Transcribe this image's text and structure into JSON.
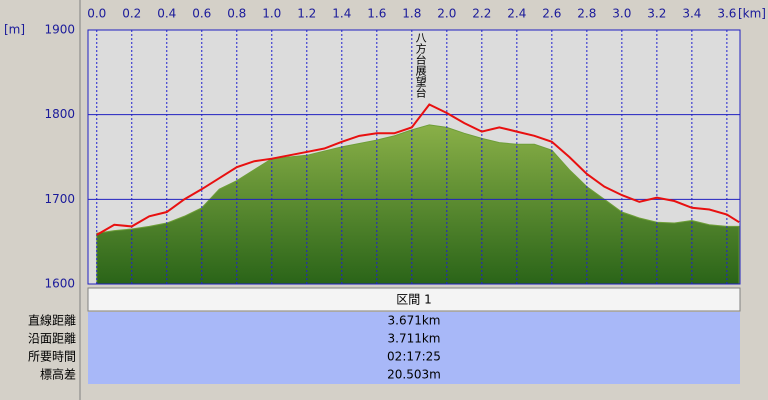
{
  "chart_data": {
    "type": "line",
    "xunit": "[km]",
    "yunit": "[m]",
    "x": [
      0,
      0.1,
      0.2,
      0.3,
      0.4,
      0.5,
      0.6,
      0.7,
      0.8,
      0.9,
      1.0,
      1.1,
      1.2,
      1.3,
      1.4,
      1.5,
      1.6,
      1.7,
      1.8,
      1.9,
      2.0,
      2.1,
      2.2,
      2.3,
      2.4,
      2.5,
      2.6,
      2.7,
      2.8,
      2.9,
      3.0,
      3.1,
      3.2,
      3.3,
      3.4,
      3.5,
      3.6,
      3.67
    ],
    "series": [
      {
        "style": "area",
        "color": "#6e9e38",
        "values": [
          1660,
          1663,
          1665,
          1668,
          1672,
          1680,
          1690,
          1712,
          1722,
          1735,
          1748,
          1750,
          1752,
          1757,
          1762,
          1766,
          1770,
          1775,
          1782,
          1788,
          1785,
          1778,
          1772,
          1767,
          1765,
          1765,
          1758,
          1735,
          1715,
          1700,
          1685,
          1678,
          1673,
          1672,
          1675,
          1670,
          1668,
          1668
        ]
      },
      {
        "style": "line",
        "color": "#e81010",
        "values": [
          1658,
          1670,
          1668,
          1680,
          1685,
          1700,
          1712,
          1725,
          1738,
          1745,
          1748,
          1752,
          1756,
          1760,
          1768,
          1775,
          1778,
          1778,
          1785,
          1812,
          1802,
          1790,
          1780,
          1785,
          1780,
          1775,
          1768,
          1750,
          1730,
          1715,
          1705,
          1697,
          1702,
          1698,
          1690,
          1688,
          1682,
          1673
        ]
      }
    ],
    "annotations": [
      {
        "text": "八方台展望台",
        "x": 1.85
      }
    ],
    "xlim": [
      -0.05,
      3.675
    ],
    "ylim": [
      1600,
      1900
    ],
    "xticks": [
      {
        "value": 0,
        "label": "0.0"
      },
      0.2,
      0.4,
      0.6,
      0.8,
      {
        "value": 1,
        "label": "1.0"
      },
      1.2,
      1.4,
      1.6,
      1.8,
      {
        "value": 2,
        "label": "2.0"
      },
      2.2,
      2.4,
      2.6,
      2.8,
      {
        "value": 3,
        "label": "3.0"
      },
      3.2,
      3.4,
      3.6
    ],
    "yticks": [
      1600,
      1700,
      1800,
      1900
    ],
    "grid": true
  },
  "table": {
    "header": "区間 1",
    "rows": [
      [
        "直線距離",
        "3.671km"
      ],
      [
        "沿面距離",
        "3.711km"
      ],
      [
        "所要時間",
        "02:17:25"
      ],
      [
        "標高差",
        "20.503m"
      ]
    ]
  }
}
